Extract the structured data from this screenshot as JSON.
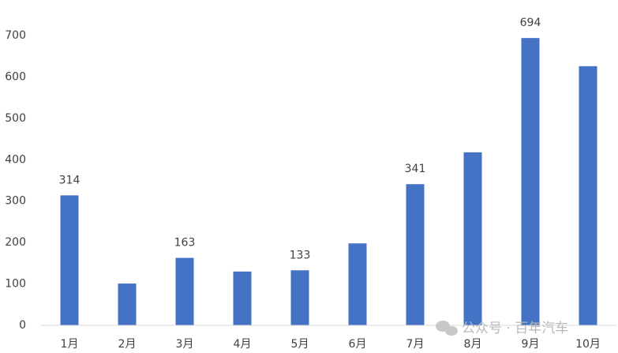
{
  "chart_data": {
    "type": "bar",
    "categories": [
      "1月",
      "2月",
      "3月",
      "4月",
      "5月",
      "6月",
      "7月",
      "8月",
      "9月",
      "10月"
    ],
    "values": [
      314,
      101,
      163,
      130,
      133,
      198,
      341,
      418,
      694,
      626
    ],
    "value_labels": [
      "314",
      null,
      "163",
      null,
      "133",
      null,
      "341",
      null,
      "694",
      null
    ],
    "color": "#4472c4",
    "ylim": [
      0,
      700
    ],
    "yticks": [
      0,
      100,
      200,
      300,
      400,
      500,
      600,
      700
    ],
    "grid": false
  },
  "watermark": "公众号 · 百年汽车"
}
